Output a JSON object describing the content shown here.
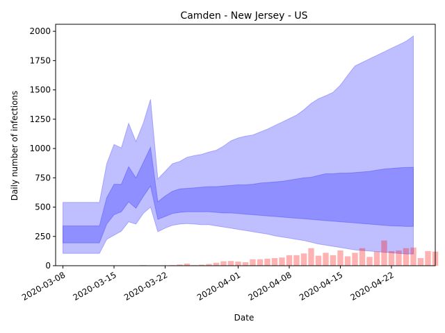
{
  "chart_data": {
    "type": "area",
    "title": "Camden - New Jersey - US",
    "xlabel": "Date",
    "ylabel": "Daily number of infections",
    "x_start": "2020-03-08",
    "x_end": "2020-04-26",
    "xlim": [
      "2020-03-07",
      "2020-04-28"
    ],
    "ylim": [
      0,
      2060
    ],
    "x_ticks": [
      "2020-03-08",
      "2020-03-15",
      "2020-03-22",
      "2020-04-01",
      "2020-04-08",
      "2020-04-15",
      "2020-04-22"
    ],
    "y_ticks": [
      0,
      250,
      500,
      750,
      1000,
      1250,
      1500,
      1750,
      2000
    ],
    "series": [
      {
        "band": "outer",
        "color": "#0000ff",
        "alpha": 0.25,
        "upper": [
          540,
          540,
          540,
          540,
          540,
          540,
          870,
          1035,
          1005,
          1215,
          1060,
          1215,
          1420,
          740,
          805,
          870,
          890,
          925,
          940,
          950,
          970,
          985,
          1020,
          1065,
          1090,
          1105,
          1115,
          1140,
          1165,
          1195,
          1225,
          1255,
          1285,
          1330,
          1385,
          1425,
          1450,
          1480,
          1540,
          1625,
          1705,
          1735,
          1765,
          1795,
          1825,
          1855,
          1885,
          1915,
          1960
        ],
        "lower": [
          105,
          105,
          105,
          105,
          105,
          105,
          225,
          260,
          295,
          375,
          355,
          445,
          500,
          290,
          320,
          345,
          355,
          360,
          355,
          350,
          350,
          340,
          330,
          320,
          310,
          300,
          290,
          280,
          270,
          255,
          245,
          235,
          225,
          215,
          200,
          185,
          175,
          165,
          155,
          145,
          135,
          130,
          125,
          120,
          115,
          110,
          105,
          100,
          100
        ]
      },
      {
        "band": "inner",
        "color": "#0000ff",
        "alpha": 0.25,
        "upper": [
          340,
          340,
          340,
          340,
          340,
          340,
          580,
          695,
          695,
          845,
          750,
          880,
          1010,
          545,
          595,
          635,
          655,
          660,
          665,
          670,
          675,
          675,
          680,
          685,
          690,
          690,
          695,
          705,
          710,
          715,
          720,
          730,
          740,
          750,
          755,
          770,
          785,
          785,
          790,
          790,
          795,
          800,
          805,
          815,
          825,
          830,
          835,
          838,
          840
        ],
        "lower": [
          195,
          195,
          195,
          195,
          195,
          195,
          355,
          435,
          460,
          545,
          490,
          590,
          680,
          395,
          420,
          445,
          455,
          460,
          460,
          460,
          460,
          455,
          450,
          450,
          445,
          440,
          435,
          430,
          425,
          420,
          415,
          410,
          405,
          400,
          395,
          390,
          385,
          380,
          375,
          370,
          365,
          360,
          355,
          350,
          345,
          340,
          338,
          335,
          335
        ]
      },
      {
        "type": "bar",
        "color": "#ff0000",
        "alpha": 0.3,
        "values": [
          0,
          0,
          0,
          0,
          0,
          0,
          0,
          0,
          0,
          0,
          3,
          5,
          3,
          0,
          0,
          5,
          10,
          18,
          5,
          8,
          15,
          25,
          38,
          40,
          35,
          30,
          55,
          55,
          60,
          65,
          70,
          90,
          90,
          105,
          150,
          85,
          110,
          90,
          130,
          80,
          110,
          150,
          75,
          120,
          215,
          125,
          130,
          150,
          155,
          65,
          125,
          120
        ]
      }
    ]
  }
}
